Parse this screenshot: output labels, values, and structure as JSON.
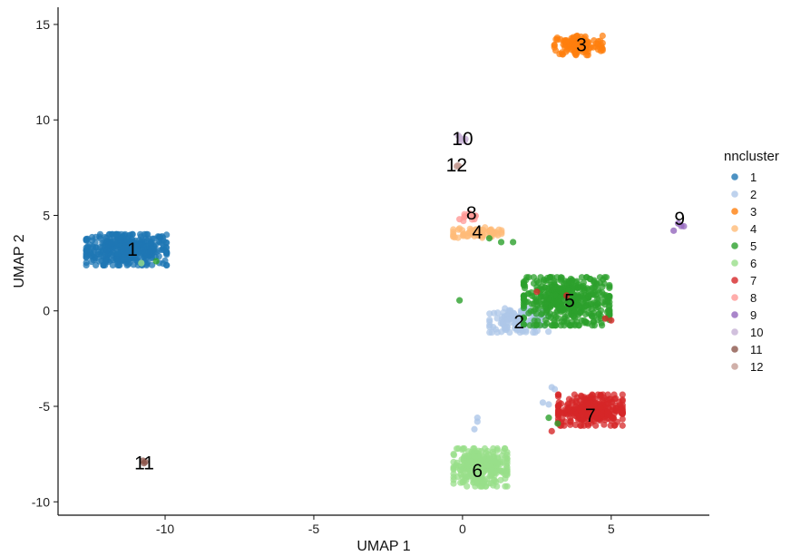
{
  "chart_data": {
    "type": "scatter",
    "title": "",
    "xlabel": "UMAP 1",
    "ylabel": "UMAP 2",
    "xlim": [
      -13.6,
      8.3
    ],
    "ylim": [
      -10.7,
      15.9
    ],
    "xticks": [
      -10,
      -5,
      0,
      5
    ],
    "yticks": [
      -10,
      -5,
      0,
      5,
      10,
      15
    ],
    "grid": false,
    "legend": {
      "title": "nncluster",
      "position": "right",
      "entries": [
        "1",
        "2",
        "3",
        "4",
        "5",
        "6",
        "7",
        "8",
        "9",
        "10",
        "11",
        "12"
      ]
    },
    "colors": {
      "1": "#1f77b4",
      "2": "#aec7e8",
      "3": "#ff7f0e",
      "4": "#ffbb78",
      "5": "#2ca02c",
      "6": "#98df8a",
      "7": "#d62728",
      "8": "#ff9896",
      "9": "#9467bd",
      "10": "#c5b0d5",
      "11": "#8c564b",
      "12": "#c49c94"
    },
    "clusters": [
      {
        "label": "1",
        "center": [
          -11.3,
          3.2
        ],
        "spread": [
          0.75,
          0.45
        ],
        "n": 420,
        "color_key": "1"
      },
      {
        "label": "2",
        "center": [
          1.9,
          -0.5
        ],
        "spread": [
          0.55,
          0.35
        ],
        "n": 130,
        "color_key": "2"
      },
      {
        "label": "3",
        "center": [
          3.9,
          13.9
        ],
        "spread": [
          0.45,
          0.28
        ],
        "n": 130,
        "color_key": "3"
      },
      {
        "label": "4",
        "center": [
          0.5,
          4.1
        ],
        "spread": [
          0.45,
          0.15
        ],
        "n": 70,
        "color_key": "4"
      },
      {
        "label": "5",
        "center": [
          3.5,
          0.5
        ],
        "spread": [
          0.8,
          0.7
        ],
        "n": 460,
        "color_key": "5"
      },
      {
        "label": "6",
        "center": [
          0.6,
          -8.2
        ],
        "spread": [
          0.5,
          0.55
        ],
        "n": 280,
        "color_key": "6"
      },
      {
        "label": "7",
        "center": [
          4.3,
          -5.2
        ],
        "spread": [
          0.6,
          0.45
        ],
        "n": 300,
        "color_key": "7"
      },
      {
        "label": "8",
        "center": [
          0.3,
          4.9
        ],
        "spread": [
          0.15,
          0.12
        ],
        "n": 10,
        "color_key": "8"
      },
      {
        "label": "9",
        "center": [
          7.3,
          4.5
        ],
        "spread": [
          0.08,
          0.1
        ],
        "n": 3,
        "color_key": "9"
      },
      {
        "label": "10",
        "center": [
          0.0,
          9.0
        ],
        "spread": [
          0.08,
          0.1
        ],
        "n": 5,
        "color_key": "10"
      },
      {
        "label": "11",
        "center": [
          -10.7,
          -7.9
        ],
        "spread": [
          0.05,
          0.05
        ],
        "n": 3,
        "color_key": "11"
      },
      {
        "label": "12",
        "center": [
          -0.2,
          7.6
        ],
        "spread": [
          0.05,
          0.05
        ],
        "n": 3,
        "color_key": "12"
      }
    ],
    "extra_points": [
      {
        "x": -0.1,
        "y": 0.55,
        "color_key": "5"
      },
      {
        "x": 1.3,
        "y": 3.6,
        "color_key": "5"
      },
      {
        "x": 1.7,
        "y": 3.6,
        "color_key": "5"
      },
      {
        "x": 0.9,
        "y": 3.8,
        "color_key": "5"
      },
      {
        "x": 2.9,
        "y": -5.6,
        "color_key": "5"
      },
      {
        "x": 3.2,
        "y": -5.9,
        "color_key": "5"
      },
      {
        "x": -10.8,
        "y": 2.5,
        "color_key": "6"
      },
      {
        "x": -10.3,
        "y": 2.6,
        "color_key": "5"
      },
      {
        "x": 0.5,
        "y": -5.8,
        "color_key": "2"
      },
      {
        "x": 0.5,
        "y": -5.6,
        "color_key": "2"
      },
      {
        "x": 0.4,
        "y": -6.2,
        "color_key": "2"
      },
      {
        "x": 2.7,
        "y": -4.8,
        "color_key": "2"
      },
      {
        "x": 2.9,
        "y": -4.9,
        "color_key": "2"
      },
      {
        "x": 3.0,
        "y": -4.0,
        "color_key": "2"
      },
      {
        "x": 3.1,
        "y": -4.1,
        "color_key": "2"
      },
      {
        "x": 5.0,
        "y": -0.5,
        "color_key": "7"
      },
      {
        "x": 4.8,
        "y": -0.4,
        "color_key": "7"
      },
      {
        "x": 2.5,
        "y": 1.0,
        "color_key": "7"
      },
      {
        "x": 3.0,
        "y": -6.3,
        "color_key": "7"
      },
      {
        "x": 3.5,
        "y": 0.8,
        "color_key": "7"
      },
      {
        "x": 7.1,
        "y": 4.2,
        "color_key": "9"
      },
      {
        "x": -0.1,
        "y": 4.8,
        "color_key": "8"
      },
      {
        "x": 0.4,
        "y": 4.8,
        "color_key": "8"
      },
      {
        "x": 0.1,
        "y": 9.0,
        "color_key": "10"
      },
      {
        "x": -0.1,
        "y": 9.1,
        "color_key": "10"
      }
    ],
    "labels": [
      {
        "text": "1",
        "x": -11.1,
        "y": 3.2
      },
      {
        "text": "2",
        "x": 1.9,
        "y": -0.6
      },
      {
        "text": "3",
        "x": 4.0,
        "y": 13.9
      },
      {
        "text": "4",
        "x": 0.5,
        "y": 4.1
      },
      {
        "text": "5",
        "x": 3.6,
        "y": 0.5
      },
      {
        "text": "6",
        "x": 0.5,
        "y": -8.4
      },
      {
        "text": "7",
        "x": 4.3,
        "y": -5.5
      },
      {
        "text": "8",
        "x": 0.3,
        "y": 5.1
      },
      {
        "text": "9",
        "x": 7.3,
        "y": 4.8
      },
      {
        "text": "10",
        "x": 0.0,
        "y": 9.0
      },
      {
        "text": "11",
        "x": -10.7,
        "y": -8.0
      },
      {
        "text": "12",
        "x": -0.2,
        "y": 7.6
      }
    ]
  }
}
